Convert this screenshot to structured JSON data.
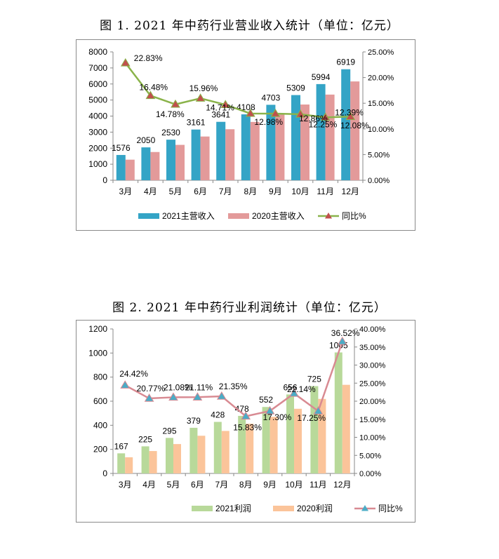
{
  "chart_data": [
    {
      "type": "bar",
      "title": "图 1. 2021 年中药行业营业收入统计（单位：亿元）",
      "categories": [
        "3月",
        "4月",
        "5月",
        "6月",
        "7月",
        "8月",
        "9月",
        "10月",
        "11月",
        "12月"
      ],
      "series": [
        {
          "name": "2021主营收入",
          "type": "bar",
          "color": "#34a4c6",
          "values": [
            1576,
            2050,
            2530,
            3161,
            3641,
            4108,
            4703,
            5309,
            5994,
            6919
          ],
          "labels": [
            "1576",
            "2050",
            "2530",
            "3161",
            "3641",
            "4108",
            "4703",
            "5309",
            "5994",
            "6919"
          ]
        },
        {
          "name": "2020主营收入",
          "type": "bar",
          "color": "#e39a9a",
          "values": [
            1283,
            1760,
            2205,
            2726,
            3180,
            3635,
            4163,
            4720,
            5340,
            6159
          ]
        },
        {
          "name": "同比%",
          "type": "line",
          "axis": "right",
          "color": "#8ab34a",
          "marker_color": "#c0504d",
          "values": [
            22.83,
            16.48,
            14.78,
            15.96,
            14.71,
            13.0,
            12.98,
            12.86,
            12.25,
            12.39
          ],
          "labels": [
            "22.83%",
            "16.48%",
            "14.78%",
            "15.96%",
            "14.71%",
            "",
            "12.98%",
            "12.86%",
            "12.25%",
            "12.39%"
          ]
        }
      ],
      "extra_labels": [
        "12.08%"
      ],
      "ylim": [
        0,
        8000
      ],
      "yticks": [
        "0",
        "1000",
        "2000",
        "3000",
        "4000",
        "5000",
        "6000",
        "7000",
        "8000"
      ],
      "y2lim": [
        0,
        25
      ],
      "y2ticks": [
        "0.00%",
        "5.00%",
        "10.00%",
        "15.00%",
        "20.00%",
        "25.00%"
      ],
      "legend_position": "bottom",
      "grid": false
    },
    {
      "type": "bar",
      "title": "图 2. 2021 年中药行业利润统计（单位：亿元）",
      "categories": [
        "3月",
        "4月",
        "5月",
        "6月",
        "7月",
        "8月",
        "9月",
        "10月",
        "11月",
        "12月"
      ],
      "series": [
        {
          "name": "2021利润",
          "type": "bar",
          "color": "#b8d99a",
          "values": [
            167,
            225,
            295,
            379,
            428,
            478,
            552,
            656,
            725,
            1005
          ],
          "labels": [
            "167",
            "225",
            "295",
            "379",
            "428",
            "478",
            "552",
            "656",
            "725",
            "1005"
          ]
        },
        {
          "name": "2020利润",
          "type": "bar",
          "color": "#fbc49a",
          "values": [
            134,
            186,
            244,
            313,
            353,
            413,
            470,
            537,
            619,
            736
          ]
        },
        {
          "name": "同比%",
          "type": "line",
          "axis": "right",
          "color": "#d88a92",
          "marker_color": "#4bacc6",
          "values": [
            24.42,
            20.77,
            21.08,
            21.11,
            21.35,
            15.83,
            17.3,
            22.14,
            17.25,
            36.52
          ],
          "labels": [
            "24.42%",
            "20.77%",
            "21.08%",
            "21.11%",
            "21.35%",
            "15.83%",
            "17.30%",
            "22.14%",
            "17.25%",
            "36.52%"
          ]
        }
      ],
      "ylim": [
        0,
        1200
      ],
      "yticks": [
        "0",
        "200",
        "400",
        "600",
        "800",
        "1000",
        "1200"
      ],
      "y2lim": [
        0,
        40
      ],
      "y2ticks": [
        "0.00%",
        "5.00%",
        "10.00%",
        "15.00%",
        "20.00%",
        "25.00%",
        "30.00%",
        "35.00%",
        "40.00%"
      ],
      "legend_position": "bottom",
      "grid": false
    }
  ]
}
